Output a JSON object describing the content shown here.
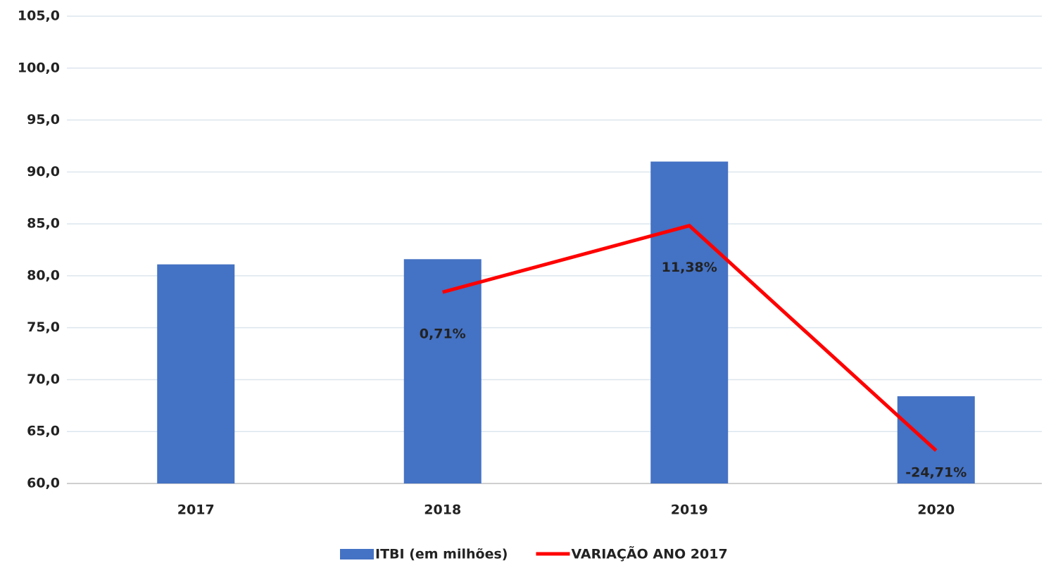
{
  "chart_data": {
    "type": "bar-line",
    "categories": [
      "2017",
      "2018",
      "2019",
      "2020"
    ],
    "series": [
      {
        "name": "ITBI (em milhões)",
        "type": "bar",
        "color": "#4472c4",
        "values": [
          81.1,
          81.6,
          91.0,
          68.4
        ]
      },
      {
        "name": "VARIAÇÃO ANO 2017",
        "type": "line",
        "axis": "y2",
        "color": "#ff0000",
        "values": [
          null,
          0.71,
          11.38,
          -24.71
        ],
        "value_labels": [
          null,
          "0,71%",
          "11,38%",
          "-24,71%"
        ]
      }
    ],
    "ylim": [
      60,
      105
    ],
    "yticks": [
      {
        "value": 60,
        "label": "60,0"
      },
      {
        "value": 65,
        "label": "65,0"
      },
      {
        "value": 70,
        "label": "70,0"
      },
      {
        "value": 75,
        "label": "75,0"
      },
      {
        "value": 80,
        "label": "80,0"
      },
      {
        "value": 85,
        "label": "85,0"
      },
      {
        "value": 90,
        "label": "90,0"
      },
      {
        "value": 95,
        "label": "95,0"
      },
      {
        "value": 100,
        "label": "100,0"
      },
      {
        "value": 105,
        "label": "105,0"
      }
    ],
    "y2lim": [
      -30,
      45
    ],
    "grid": true,
    "legend": "bottom"
  }
}
